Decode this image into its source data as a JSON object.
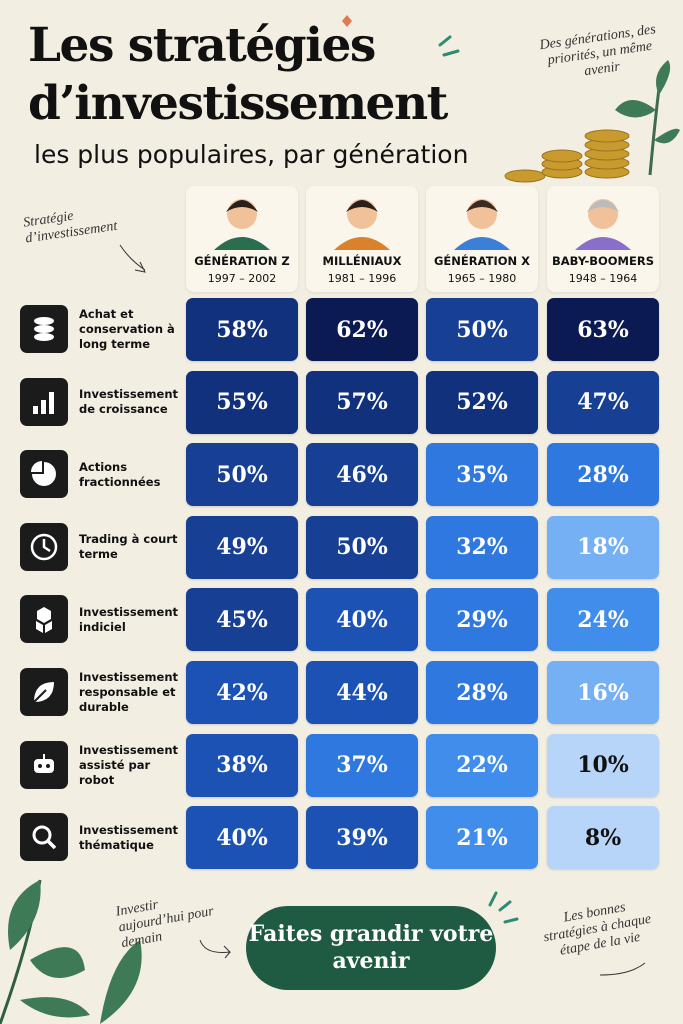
{
  "header": {
    "title_line1": "Les stratégies",
    "title_line2": "d’investissement",
    "subtitle": "les plus populaires, par génération",
    "side_note": "Des générations, des priorités, un même avenir"
  },
  "table": {
    "corner_label": "Stratégie d’investissement",
    "columns": [
      {
        "name": "GÉNÉRATION Z",
        "years": "1997 – 2002"
      },
      {
        "name": "MILLÉNIAUX",
        "years": "1981 – 1996"
      },
      {
        "name": "GÉNÉRATION X",
        "years": "1965 – 1980"
      },
      {
        "name": "BABY-BOOMERS",
        "years": "1948 – 1964"
      }
    ],
    "rows": [
      {
        "label": "Achat et conservation à long terme",
        "cells": [
          "58%",
          "62%",
          "50%",
          "63%"
        ]
      },
      {
        "label": "Investissement de croissance",
        "cells": [
          "55%",
          "57%",
          "52%",
          "47%"
        ]
      },
      {
        "label": "Actions fractionnées",
        "cells": [
          "50%",
          "46%",
          "35%",
          "28%"
        ]
      },
      {
        "label": "Trading à court terme",
        "cells": [
          "49%",
          "50%",
          "32%",
          "18%"
        ]
      },
      {
        "label": "Investissement indiciel",
        "cells": [
          "45%",
          "40%",
          "29%",
          "24%"
        ]
      },
      {
        "label": "Investissement responsable et durable",
        "cells": [
          "42%",
          "44%",
          "28%",
          "16%"
        ]
      },
      {
        "label": "Investissement assisté par robot",
        "cells": [
          "38%",
          "37%",
          "22%",
          "10%"
        ]
      },
      {
        "label": "Investissement thématique",
        "cells": [
          "40%",
          "39%",
          "21%",
          "8%"
        ]
      }
    ]
  },
  "footer": {
    "left_note": "Investir aujourd’hui pour demain",
    "button": "Faites grandir votre avenir",
    "right_note": "Les bonnes stratégies à chaque étape de la vie"
  }
}
